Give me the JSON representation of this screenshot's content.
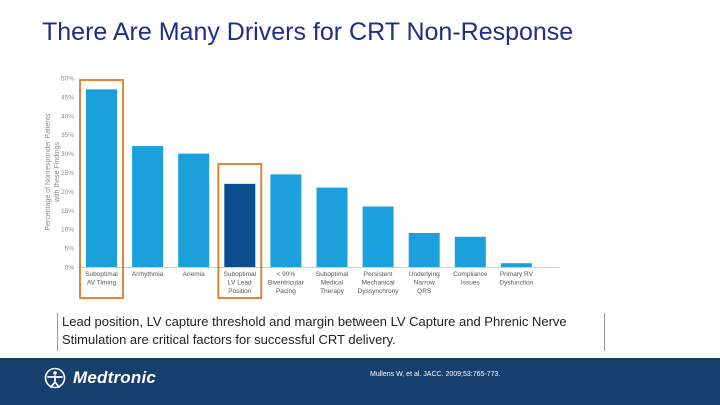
{
  "slide": {
    "title": "There Are Many Drivers for CRT Non-Response",
    "caption_line1": "Lead position, LV capture threshold and margin between LV Capture and Phrenic Nerve",
    "caption_line2": "Stimulation are critical factors for successful CRT delivery.",
    "citation": "Mullens W, et al. JACC. 2009;53:765-773.",
    "logo_text": "Medtronic"
  },
  "colors": {
    "title": "#1f2e86",
    "bar": "#1ba0dc",
    "bar_highlight": "#0b4f8e",
    "highlight_border": "#e07b22",
    "axis_text": "#8c8c8c",
    "footer": "#163f6e"
  },
  "chart_data": {
    "type": "bar",
    "ylabel": "Percentage of Nonresponder Patients with these Findings",
    "ylim": [
      0,
      50
    ],
    "yticks": [
      "0%",
      "5%",
      "10%",
      "15%",
      "20%",
      "25%",
      "30%",
      "35%",
      "40%",
      "45%",
      "50%"
    ],
    "categories": [
      [
        "Suboptimal",
        "AV Timing"
      ],
      [
        "Arrhythmia"
      ],
      [
        "Anemia"
      ],
      [
        "Suboptimal",
        "LV Lead",
        "Position"
      ],
      [
        "< 90%",
        "Biventricular",
        "Pacing"
      ],
      [
        "Suboptimal",
        "Medical",
        "Therapy"
      ],
      [
        "Persistent",
        "Mechanical",
        "Dyssynchrony"
      ],
      [
        "Underlying",
        "Narrow",
        "QRS"
      ],
      [
        "Compliance",
        "Issues"
      ],
      [
        "Primary RV",
        "Dysfunction"
      ]
    ],
    "values": [
      47,
      32,
      30,
      22,
      24.5,
      21,
      16,
      9,
      8,
      1
    ],
    "highlighted": [
      0,
      3
    ],
    "emphasized": [
      3
    ]
  }
}
